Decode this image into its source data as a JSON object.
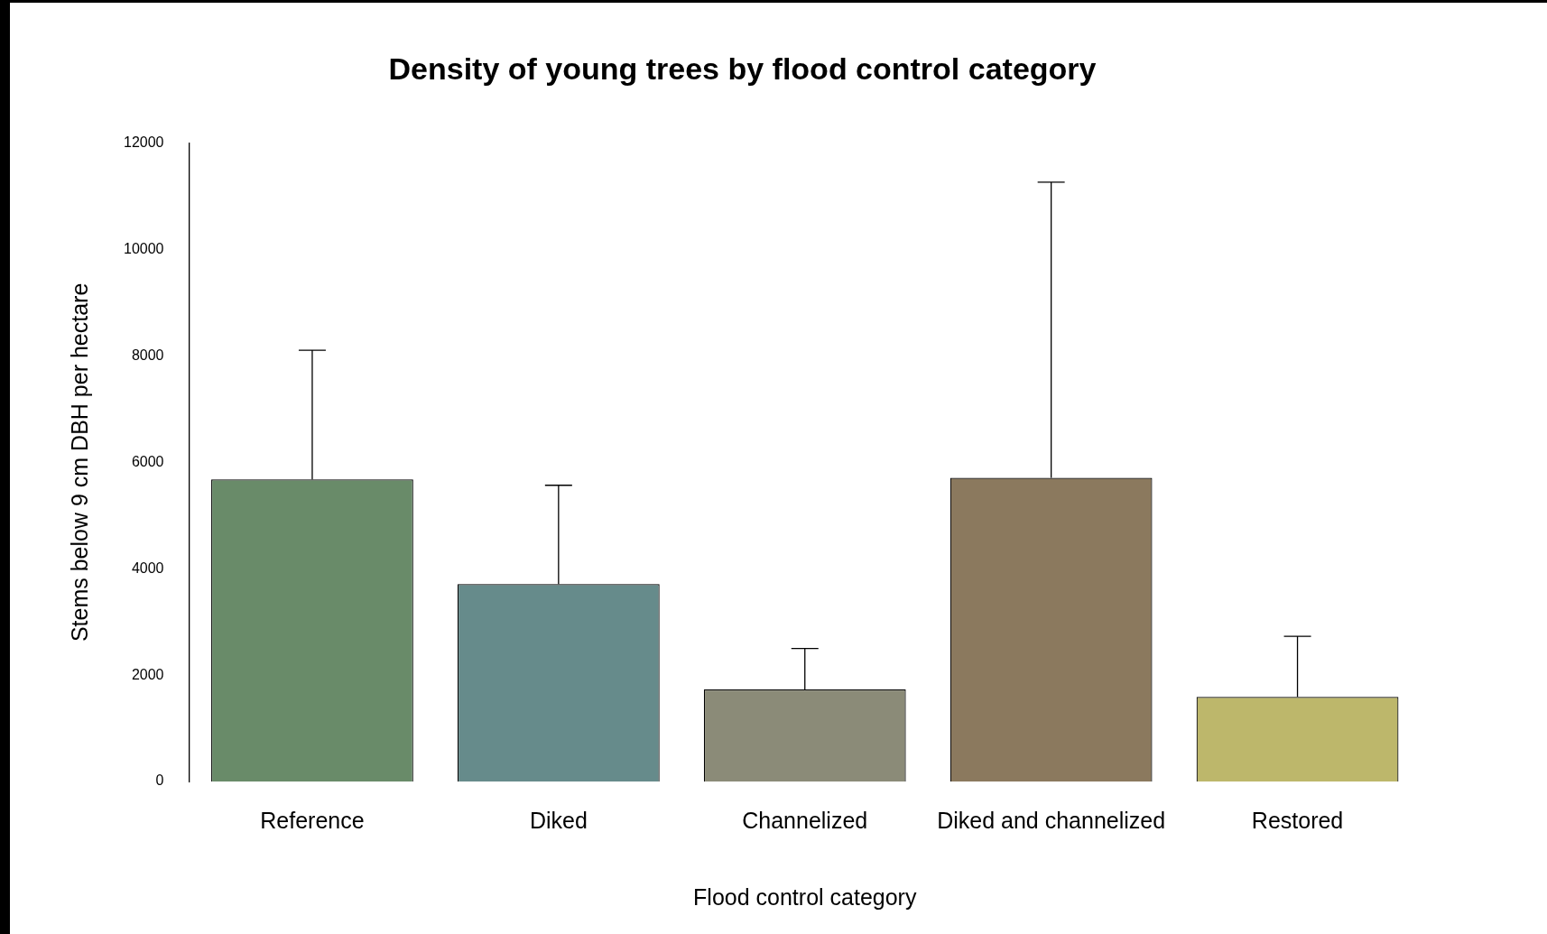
{
  "chart_data": {
    "type": "bar",
    "title": "Density of young trees by flood control category",
    "xlabel": "Flood control category",
    "ylabel": "Stems below 9 cm DBH per hectare",
    "categories": [
      "Reference",
      "Diked",
      "Channelized",
      "Diked and channelized",
      "Restored"
    ],
    "values": [
      5680,
      3710,
      1730,
      5710,
      1590
    ],
    "errors": [
      [
        5680,
        8110
      ],
      [
        3710,
        5570
      ],
      [
        1730,
        2500
      ],
      [
        5710,
        11270
      ],
      [
        1590,
        2730
      ]
    ],
    "colors": [
      "#698b69",
      "#668b8b",
      "#8b8b78",
      "#8b795e",
      "#bdb76b"
    ],
    "ylim": [
      0,
      12000
    ],
    "yticks": [
      0,
      2000,
      4000,
      6000,
      8000,
      10000,
      12000
    ],
    "grid": false,
    "legend": false
  }
}
